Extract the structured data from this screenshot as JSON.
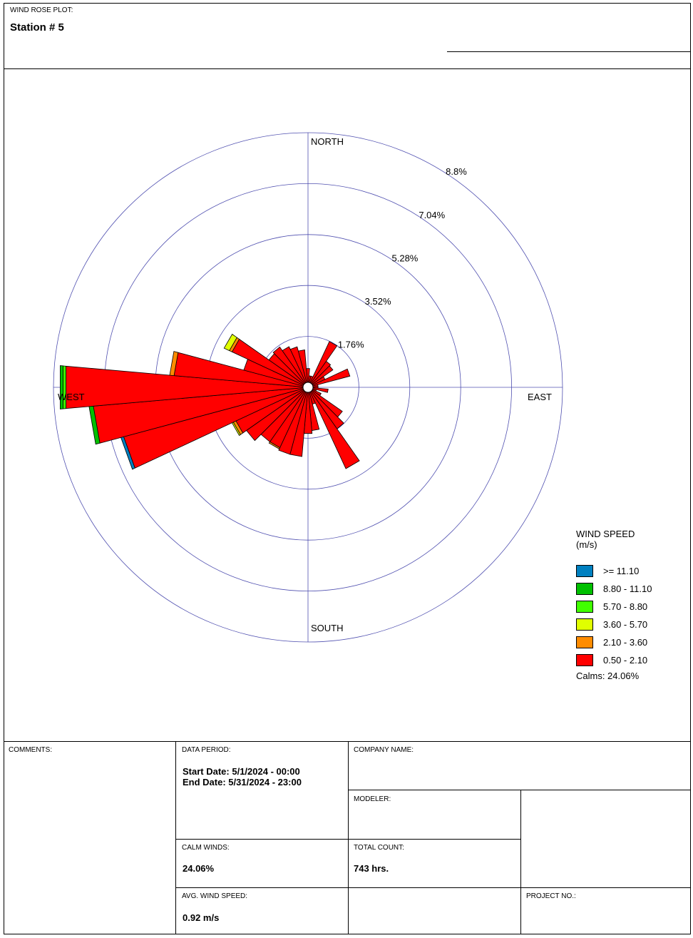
{
  "header": {
    "label": "WIND ROSE PLOT:",
    "station": "Station #   5"
  },
  "chart_data": {
    "type": "wind_rose",
    "direction_labels": {
      "north": "NORTH",
      "east": "EAST",
      "south": "SOUTH",
      "west": "WEST"
    },
    "ring_labels": [
      "1.76%",
      "3.52%",
      "5.28%",
      "7.04%",
      "8.8%"
    ],
    "ring_values": [
      1.76,
      3.52,
      5.28,
      7.04,
      8.8
    ],
    "radial_max": 8.8,
    "sector_count": 36,
    "sector_width_deg": 10,
    "speed_bins": [
      {
        "label": ">= 11.10",
        "color": "#0080c0"
      },
      {
        "label": "8.80 - 11.10",
        "color": "#00c000"
      },
      {
        "label": "5.70 - 8.80",
        "color": "#40ff00"
      },
      {
        "label": "3.60 - 5.70",
        "color": "#e0ff00"
      },
      {
        "label": "2.10 - 3.60",
        "color": "#ff8c00"
      },
      {
        "label": "0.50 - 2.10",
        "color": "#ff0000"
      }
    ],
    "sectors": [
      {
        "direction_deg": 0,
        "values": [
          0,
          0,
          0,
          0,
          0,
          0.65
        ]
      },
      {
        "direction_deg": 10,
        "values": [
          0,
          0,
          0,
          0,
          0,
          0.4
        ]
      },
      {
        "direction_deg": 20,
        "values": [
          0,
          0,
          0,
          0,
          0,
          0.4
        ]
      },
      {
        "direction_deg": 30,
        "values": [
          0,
          0,
          0,
          0,
          0,
          1.75
        ]
      },
      {
        "direction_deg": 40,
        "values": [
          0,
          0,
          0,
          0,
          0,
          1.1
        ]
      },
      {
        "direction_deg": 50,
        "values": [
          0,
          0,
          0,
          0,
          0,
          1.05
        ]
      },
      {
        "direction_deg": 60,
        "values": [
          0,
          0,
          0,
          0,
          0,
          0.65
        ]
      },
      {
        "direction_deg": 70,
        "values": [
          0,
          0,
          0,
          0,
          0,
          1.5
        ]
      },
      {
        "direction_deg": 80,
        "values": [
          0,
          0,
          0,
          0,
          0,
          0.35
        ]
      },
      {
        "direction_deg": 90,
        "values": [
          0,
          0,
          0,
          0,
          0,
          0.35
        ]
      },
      {
        "direction_deg": 100,
        "values": [
          0,
          0,
          0,
          0,
          0,
          0.7
        ]
      },
      {
        "direction_deg": 110,
        "values": [
          0,
          0,
          0,
          0,
          0,
          0.3
        ]
      },
      {
        "direction_deg": 120,
        "values": [
          0,
          0,
          0,
          0,
          0,
          0.5
        ]
      },
      {
        "direction_deg": 130,
        "values": [
          0,
          0,
          0,
          0,
          0,
          1.45
        ]
      },
      {
        "direction_deg": 140,
        "values": [
          0,
          0,
          0,
          0,
          0,
          1.75
        ]
      },
      {
        "direction_deg": 150,
        "values": [
          0,
          0,
          0,
          0,
          0,
          3.1
        ]
      },
      {
        "direction_deg": 160,
        "values": [
          0,
          0,
          0,
          0,
          0,
          0.6
        ]
      },
      {
        "direction_deg": 170,
        "values": [
          0,
          0,
          0,
          0,
          0,
          1.5
        ]
      },
      {
        "direction_deg": 180,
        "values": [
          0,
          0,
          0,
          0,
          0,
          1.6
        ]
      },
      {
        "direction_deg": 190,
        "values": [
          0,
          0,
          0,
          0,
          0,
          2.4
        ]
      },
      {
        "direction_deg": 200,
        "values": [
          0,
          0,
          0,
          0,
          0,
          2.4
        ]
      },
      {
        "direction_deg": 210,
        "values": [
          0,
          0,
          0,
          0,
          0.05,
          2.3
        ]
      },
      {
        "direction_deg": 220,
        "values": [
          0,
          0,
          0,
          0,
          0,
          2.3
        ]
      },
      {
        "direction_deg": 230,
        "values": [
          0,
          0,
          0,
          0,
          0,
          2.6
        ]
      },
      {
        "direction_deg": 240,
        "values": [
          0,
          0,
          0,
          0.05,
          0.1,
          2.75
        ]
      },
      {
        "direction_deg": 250,
        "values": [
          0.1,
          0,
          0,
          0,
          0,
          6.6
        ]
      },
      {
        "direction_deg": 260,
        "values": [
          0,
          0.15,
          0,
          0,
          0,
          7.45
        ]
      },
      {
        "direction_deg": 270,
        "values": [
          0,
          0.1,
          0.1,
          0,
          0,
          8.4
        ]
      },
      {
        "direction_deg": 280,
        "values": [
          0,
          0,
          0,
          0,
          0.15,
          4.65
        ]
      },
      {
        "direction_deg": 290,
        "values": [
          0,
          0,
          0,
          0,
          0,
          2.3
        ]
      },
      {
        "direction_deg": 300,
        "values": [
          0,
          0,
          0,
          0.2,
          0.1,
          2.9
        ]
      },
      {
        "direction_deg": 310,
        "values": [
          0,
          0,
          0,
          0,
          0,
          1.65
        ]
      },
      {
        "direction_deg": 320,
        "values": [
          0,
          0,
          0,
          0,
          0,
          1.7
        ]
      },
      {
        "direction_deg": 330,
        "values": [
          0,
          0,
          0,
          0,
          0,
          1.55
        ]
      },
      {
        "direction_deg": 340,
        "values": [
          0,
          0,
          0,
          0,
          0,
          1.45
        ]
      },
      {
        "direction_deg": 350,
        "values": [
          0,
          0,
          0,
          0,
          0,
          1.3
        ]
      }
    ],
    "legend_title": "WIND SPEED",
    "legend_unit": "(m/s)",
    "calms": "Calms: 24.06%"
  },
  "footer": {
    "comments_label": "COMMENTS:",
    "data_period_label": "DATA PERIOD:",
    "start_date": "Start Date: 5/1/2024 - 00:00",
    "end_date": "End Date: 5/31/2024 - 23:00",
    "company_label": "COMPANY NAME:",
    "modeler_label": "MODELER:",
    "calm_label": "CALM WINDS:",
    "calm_value": "24.06%",
    "total_label": "TOTAL COUNT:",
    "total_value": "743 hrs.",
    "avg_label": "AVG. WIND SPEED:",
    "avg_value": "0.92 m/s",
    "project_label": "PROJECT NO.:"
  }
}
